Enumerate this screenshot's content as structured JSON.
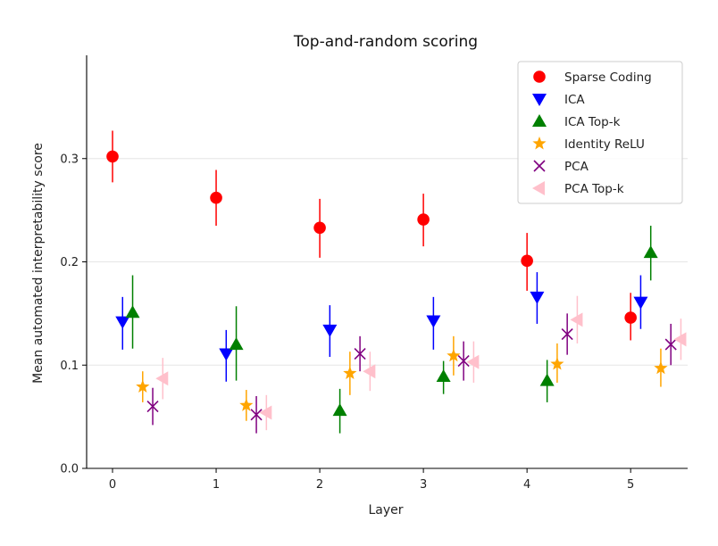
{
  "chart_data": {
    "type": "scatter",
    "title": "Top-and-random scoring",
    "xlabel": "Layer",
    "ylabel": "Mean automated interpretability score",
    "x": [
      0,
      1,
      2,
      3,
      4,
      5
    ],
    "xticks": [
      "0",
      "1",
      "2",
      "3",
      "4",
      "5"
    ],
    "yticks": [
      "0.0",
      "0.1",
      "0.2",
      "0.3"
    ],
    "xlim": [
      -0.25,
      5.55
    ],
    "ylim": [
      0.0,
      0.4
    ],
    "grid": "horizontal",
    "legend_position": "top-right",
    "series": [
      {
        "name": "Sparse Coding",
        "color": "#ff0000",
        "marker": "circle",
        "values": [
          0.302,
          0.262,
          0.233,
          0.241,
          0.201,
          0.146
        ],
        "err_low": [
          0.277,
          0.235,
          0.204,
          0.215,
          0.172,
          0.124
        ],
        "err_high": [
          0.327,
          0.289,
          0.261,
          0.266,
          0.228,
          0.17
        ]
      },
      {
        "name": "ICA",
        "color": "#0000ff",
        "marker": "triangle-down",
        "values": [
          0.142,
          0.111,
          0.134,
          0.143,
          0.166,
          0.161
        ],
        "err_low": [
          0.115,
          0.084,
          0.108,
          0.115,
          0.14,
          0.135
        ],
        "err_high": [
          0.166,
          0.134,
          0.158,
          0.166,
          0.19,
          0.187
        ]
      },
      {
        "name": "ICA Top-k",
        "color": "#008000",
        "marker": "triangle-up",
        "values": [
          0.151,
          0.12,
          0.056,
          0.089,
          0.085,
          0.209
        ],
        "err_low": [
          0.116,
          0.085,
          0.034,
          0.072,
          0.064,
          0.182
        ],
        "err_high": [
          0.187,
          0.157,
          0.077,
          0.104,
          0.105,
          0.235
        ]
      },
      {
        "name": "Identity ReLU",
        "color": "#ffa500",
        "marker": "star",
        "values": [
          0.079,
          0.061,
          0.092,
          0.109,
          0.101,
          0.097
        ],
        "err_low": [
          0.064,
          0.046,
          0.071,
          0.09,
          0.083,
          0.079
        ],
        "err_high": [
          0.094,
          0.076,
          0.113,
          0.128,
          0.121,
          0.116
        ]
      },
      {
        "name": "PCA",
        "color": "#800080",
        "marker": "x",
        "values": [
          0.06,
          0.052,
          0.111,
          0.104,
          0.13,
          0.12
        ],
        "err_low": [
          0.042,
          0.034,
          0.094,
          0.085,
          0.11,
          0.1
        ],
        "err_high": [
          0.078,
          0.07,
          0.128,
          0.123,
          0.15,
          0.14
        ]
      },
      {
        "name": "PCA Top-k",
        "color": "#ffc0cb",
        "marker": "triangle-left",
        "values": [
          0.087,
          0.054,
          0.094,
          0.103,
          0.144,
          0.125
        ],
        "err_low": [
          0.067,
          0.037,
          0.075,
          0.083,
          0.121,
          0.105
        ],
        "err_high": [
          0.107,
          0.071,
          0.113,
          0.123,
          0.167,
          0.145
        ]
      }
    ]
  }
}
